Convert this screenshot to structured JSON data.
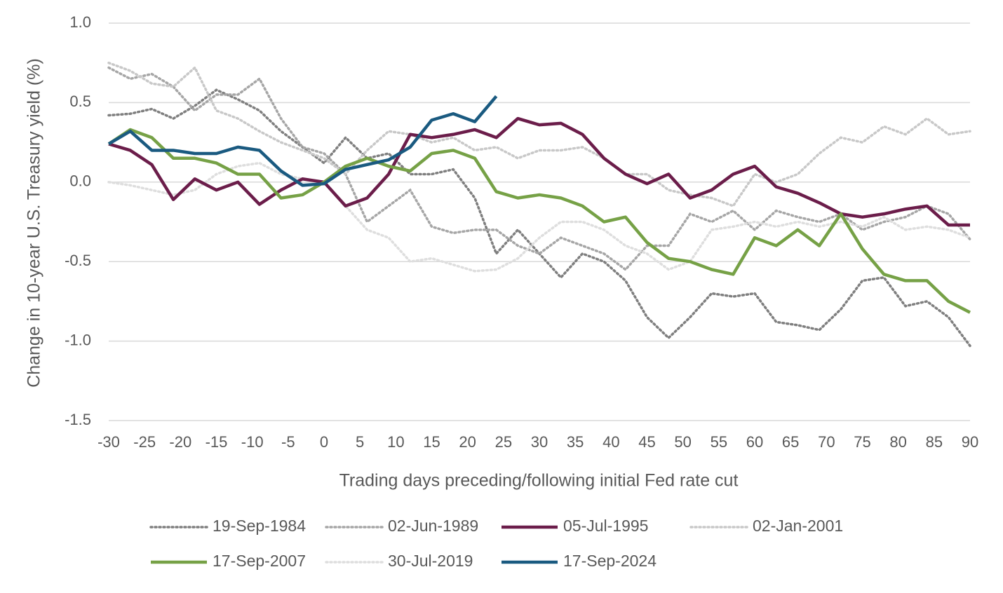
{
  "chart_data": {
    "type": "line",
    "x_label": "Trading days preceding/following initial Fed rate cut",
    "y_label": "Change in 10-year U.S. Treasury yield (%)",
    "x": [
      -30,
      -27,
      -24,
      -21,
      -18,
      -15,
      -12,
      -9,
      -6,
      -3,
      0,
      3,
      6,
      9,
      12,
      15,
      18,
      21,
      24,
      27,
      30,
      33,
      36,
      39,
      42,
      45,
      48,
      51,
      54,
      57,
      60,
      63,
      66,
      69,
      72,
      75,
      78,
      81,
      84,
      87,
      90
    ],
    "xlim": [
      -30,
      90
    ],
    "xticks": [
      -30,
      -25,
      -20,
      -15,
      -10,
      -5,
      0,
      5,
      10,
      15,
      20,
      25,
      30,
      35,
      40,
      45,
      50,
      55,
      60,
      65,
      70,
      75,
      80,
      85,
      90
    ],
    "ylim": [
      -1.5,
      1.0
    ],
    "yticks": [
      {
        "value": 1.0,
        "label": "1.0"
      },
      0.5,
      {
        "value": 0,
        "label": "0.0"
      },
      -0.5,
      {
        "value": -1.0,
        "label": "-1.0"
      },
      -1.5
    ],
    "grid": true,
    "legend": "bottom",
    "series": [
      {
        "name": "19-Sep-1984",
        "color": "#7f7f7f",
        "style": "dotted",
        "values": [
          0.42,
          0.43,
          0.46,
          0.4,
          0.48,
          0.58,
          0.52,
          0.45,
          0.32,
          0.22,
          0.12,
          0.28,
          0.15,
          0.18,
          0.05,
          0.05,
          0.08,
          -0.1,
          -0.45,
          -0.3,
          -0.45,
          -0.6,
          -0.45,
          -0.5,
          -0.62,
          -0.85,
          -0.98,
          -0.85,
          -0.7,
          -0.72,
          -0.7,
          -0.88,
          -0.9,
          -0.93,
          -0.8,
          -0.62,
          -0.6,
          -0.78,
          -0.75,
          -0.85,
          -1.03
        ]
      },
      {
        "name": "02-Jun-1989",
        "color": "#a6a6a6",
        "style": "dotted",
        "values": [
          0.72,
          0.65,
          0.68,
          0.6,
          0.45,
          0.55,
          0.55,
          0.65,
          0.4,
          0.22,
          0.18,
          0.05,
          -0.25,
          -0.15,
          -0.05,
          -0.28,
          -0.32,
          -0.3,
          -0.3,
          -0.4,
          -0.45,
          -0.35,
          -0.4,
          -0.45,
          -0.55,
          -0.4,
          -0.4,
          -0.2,
          -0.25,
          -0.18,
          -0.3,
          -0.18,
          -0.22,
          -0.25,
          -0.2,
          -0.3,
          -0.25,
          -0.22,
          -0.15,
          -0.2,
          -0.36
        ]
      },
      {
        "name": "05-Jul-1995",
        "color": "#6b1d4a",
        "style": "solid",
        "values": [
          0.24,
          0.2,
          0.11,
          -0.11,
          0.02,
          -0.05,
          0.0,
          -0.14,
          -0.05,
          0.02,
          0.0,
          -0.15,
          -0.1,
          0.05,
          0.3,
          0.28,
          0.3,
          0.33,
          0.28,
          0.4,
          0.36,
          0.37,
          0.3,
          0.15,
          0.05,
          -0.01,
          0.05,
          -0.1,
          -0.05,
          0.05,
          0.1,
          -0.03,
          -0.07,
          -0.13,
          -0.2,
          -0.22,
          -0.2,
          -0.17,
          -0.15,
          -0.27,
          -0.27
        ]
      },
      {
        "name": "02-Jan-2001",
        "color": "#c8c8c8",
        "style": "dotted",
        "values": [
          0.75,
          0.7,
          0.62,
          0.6,
          0.72,
          0.45,
          0.4,
          0.32,
          0.25,
          0.2,
          0.15,
          0.05,
          0.2,
          0.32,
          0.3,
          0.25,
          0.28,
          0.2,
          0.22,
          0.15,
          0.2,
          0.2,
          0.22,
          0.15,
          0.05,
          0.05,
          -0.05,
          -0.08,
          -0.1,
          -0.15,
          0.05,
          0.0,
          0.05,
          0.18,
          0.28,
          0.25,
          0.35,
          0.3,
          0.4,
          0.3,
          0.32
        ]
      },
      {
        "name": "17-Sep-2007",
        "color": "#76a146",
        "style": "solid",
        "values": [
          0.24,
          0.33,
          0.28,
          0.15,
          0.15,
          0.12,
          0.05,
          0.05,
          -0.1,
          -0.08,
          0.0,
          0.1,
          0.15,
          0.1,
          0.07,
          0.18,
          0.2,
          0.15,
          -0.06,
          -0.1,
          -0.08,
          -0.1,
          -0.15,
          -0.25,
          -0.22,
          -0.38,
          -0.48,
          -0.5,
          -0.55,
          -0.58,
          -0.35,
          -0.4,
          -0.3,
          -0.4,
          -0.2,
          -0.42,
          -0.58,
          -0.62,
          -0.62,
          -0.75,
          -0.82
        ]
      },
      {
        "name": "30-Jul-2019",
        "color": "#dedede",
        "style": "dotted",
        "values": [
          0.0,
          -0.02,
          -0.05,
          -0.08,
          -0.05,
          0.05,
          0.1,
          0.12,
          0.05,
          0.02,
          0.0,
          -0.15,
          -0.3,
          -0.35,
          -0.5,
          -0.48,
          -0.52,
          -0.56,
          -0.55,
          -0.48,
          -0.35,
          -0.25,
          -0.25,
          -0.3,
          -0.4,
          -0.45,
          -0.55,
          -0.5,
          -0.3,
          -0.28,
          -0.25,
          -0.28,
          -0.25,
          -0.28,
          -0.25,
          -0.28,
          -0.22,
          -0.3,
          -0.28,
          -0.3,
          -0.35
        ]
      },
      {
        "name": "17-Sep-2024",
        "color": "#1a5a80",
        "style": "solid",
        "values": [
          0.24,
          0.32,
          0.2,
          0.2,
          0.18,
          0.18,
          0.22,
          0.2,
          0.07,
          -0.02,
          -0.01,
          0.08,
          0.11,
          0.14,
          0.22,
          0.39,
          0.43,
          0.38,
          0.54,
          null,
          null,
          null,
          null,
          null,
          null,
          null,
          null,
          null,
          null,
          null,
          null,
          null,
          null,
          null,
          null,
          null,
          null,
          null,
          null,
          null,
          null
        ]
      }
    ]
  }
}
